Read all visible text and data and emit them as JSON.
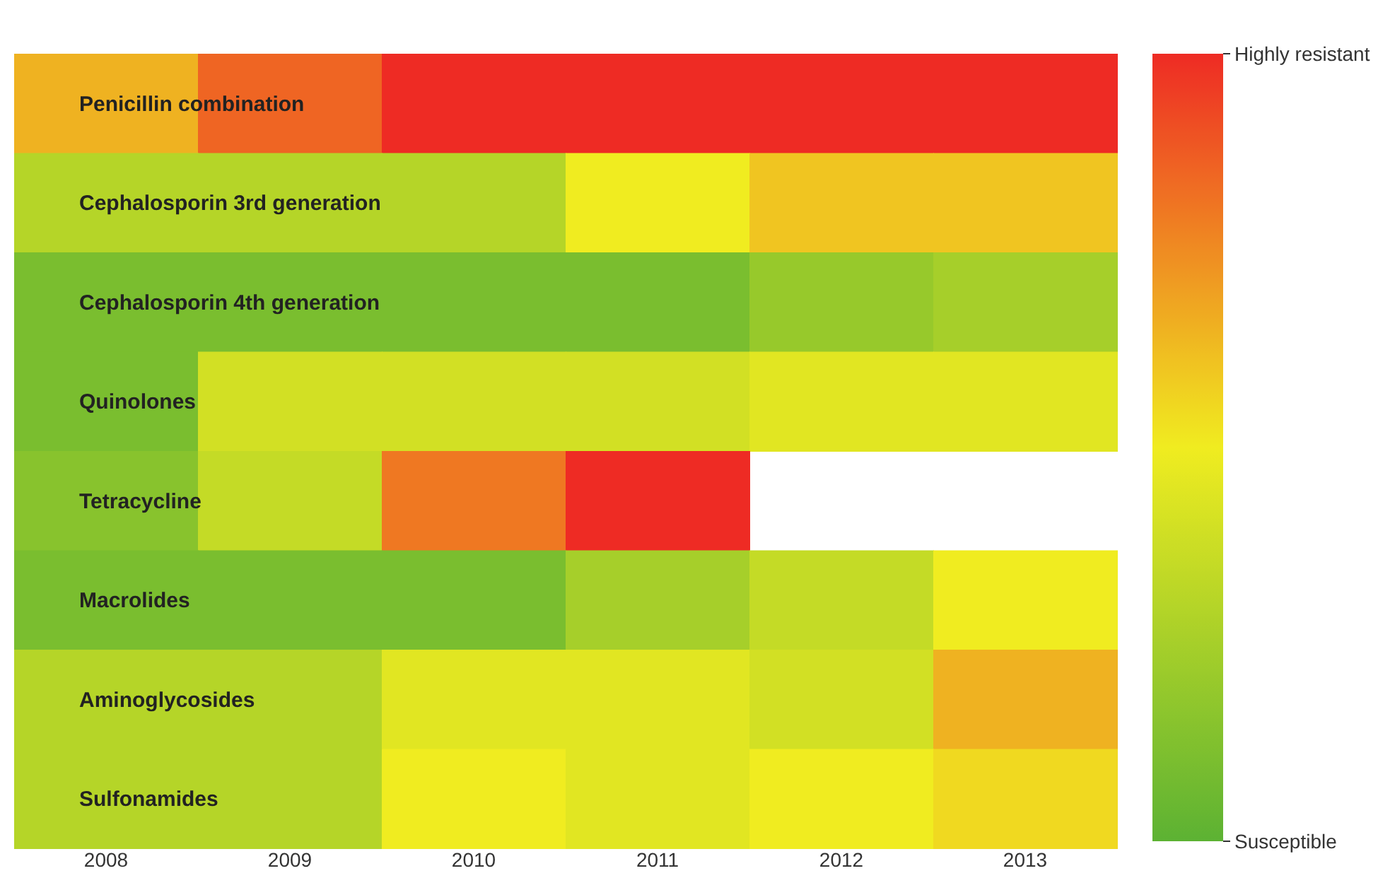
{
  "chart_data": {
    "type": "heatmap",
    "categories": [
      "2008",
      "2009",
      "2010",
      "2011",
      "2012",
      "2013"
    ],
    "y_categories": [
      "Penicillin combination",
      "Cephalosporin 3rd generation",
      "Cephalosporin 4th generation",
      "Quinolones",
      "Tetracycline",
      "Macrolides",
      "Aminoglycosides",
      "Sulfonamides"
    ],
    "cells": [
      [
        0.65,
        0.85,
        1,
        1,
        1,
        1
      ],
      [
        0.3,
        0.3,
        0.3,
        0.5,
        0.6,
        0.6
      ],
      [
        0.1,
        0.1,
        0.1,
        0.1,
        0.2,
        0.25
      ],
      [
        0.1,
        0.4,
        0.4,
        0.4,
        0.45,
        0.45
      ],
      [
        0.15,
        0.35,
        0.8,
        1,
        null,
        null
      ],
      [
        0.1,
        0.1,
        0.1,
        0.25,
        0.35,
        0.5
      ],
      [
        0.3,
        0.3,
        0.45,
        0.45,
        0.4,
        0.65
      ],
      [
        0.3,
        0.3,
        0.5,
        0.45,
        0.5,
        0.55
      ]
    ],
    "clim": [
      0,
      1
    ],
    "cticks": [
      {
        "value": 0,
        "label": "Susceptible"
      },
      {
        "value": 1,
        "label": "Highly resistant"
      }
    ]
  }
}
